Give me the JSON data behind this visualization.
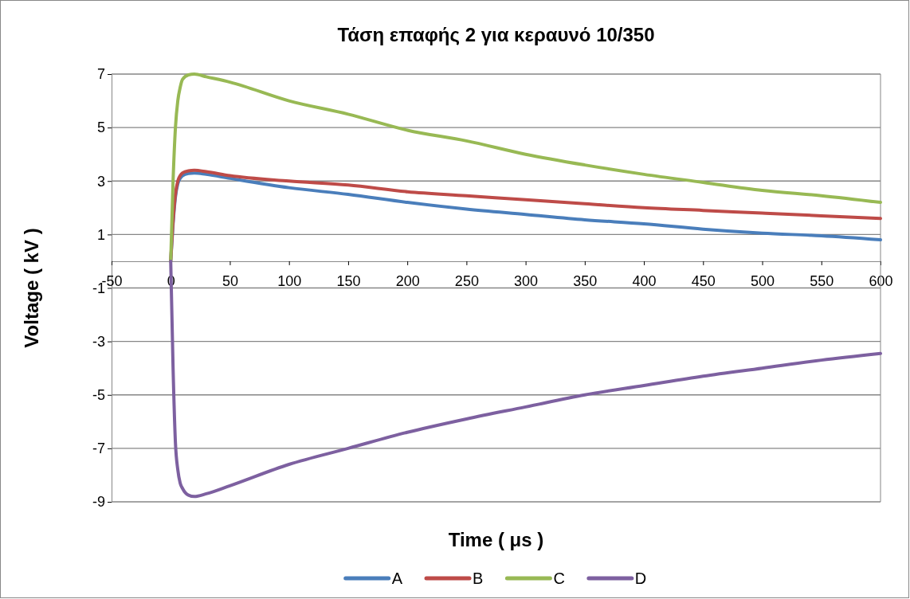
{
  "chart_data": {
    "type": "line",
    "title": "Τάση επαφής 2 για κεραυνό 10/350",
    "xlabel": "Time ( μs )",
    "ylabel": "Voltage ( kV )",
    "x": [
      0,
      2,
      4,
      6,
      8,
      10,
      15,
      20,
      30,
      50,
      100,
      150,
      200,
      250,
      300,
      350,
      400,
      450,
      500,
      550,
      600
    ],
    "series": [
      {
        "name": "A",
        "color": "#4a7ebb",
        "values": [
          0,
          1.4,
          2.4,
          2.9,
          3.1,
          3.2,
          3.28,
          3.3,
          3.25,
          3.1,
          2.75,
          2.5,
          2.2,
          1.95,
          1.75,
          1.55,
          1.4,
          1.2,
          1.05,
          0.95,
          0.8
        ]
      },
      {
        "name": "B",
        "color": "#be4b48",
        "values": [
          0,
          1.5,
          2.5,
          3.0,
          3.2,
          3.3,
          3.38,
          3.4,
          3.35,
          3.2,
          3.0,
          2.85,
          2.6,
          2.45,
          2.3,
          2.15,
          2.0,
          1.9,
          1.8,
          1.7,
          1.6
        ]
      },
      {
        "name": "C",
        "color": "#98b954",
        "values": [
          0,
          3.0,
          5.0,
          6.0,
          6.5,
          6.8,
          6.97,
          7.0,
          6.9,
          6.7,
          6.0,
          5.5,
          4.9,
          4.5,
          4.0,
          3.6,
          3.25,
          2.95,
          2.65,
          2.45,
          2.2
        ]
      },
      {
        "name": "D",
        "color": "#7d60a0",
        "values": [
          0,
          -4.0,
          -6.8,
          -7.8,
          -8.3,
          -8.5,
          -8.75,
          -8.8,
          -8.7,
          -8.4,
          -7.6,
          -7.0,
          -6.4,
          -5.9,
          -5.45,
          -5.0,
          -4.65,
          -4.3,
          -4.0,
          -3.7,
          -3.45
        ]
      }
    ],
    "xlim": [
      -50,
      600
    ],
    "xticks": [
      -50,
      0,
      50,
      100,
      150,
      200,
      250,
      300,
      350,
      400,
      450,
      500,
      550,
      600
    ],
    "ylim": [
      -9,
      7
    ],
    "yticks": [
      -9,
      -7,
      -5,
      -3,
      -1,
      1,
      3,
      5,
      7
    ],
    "grid": "y",
    "legend": "bottom",
    "marker": "none",
    "line_style": "solid"
  }
}
